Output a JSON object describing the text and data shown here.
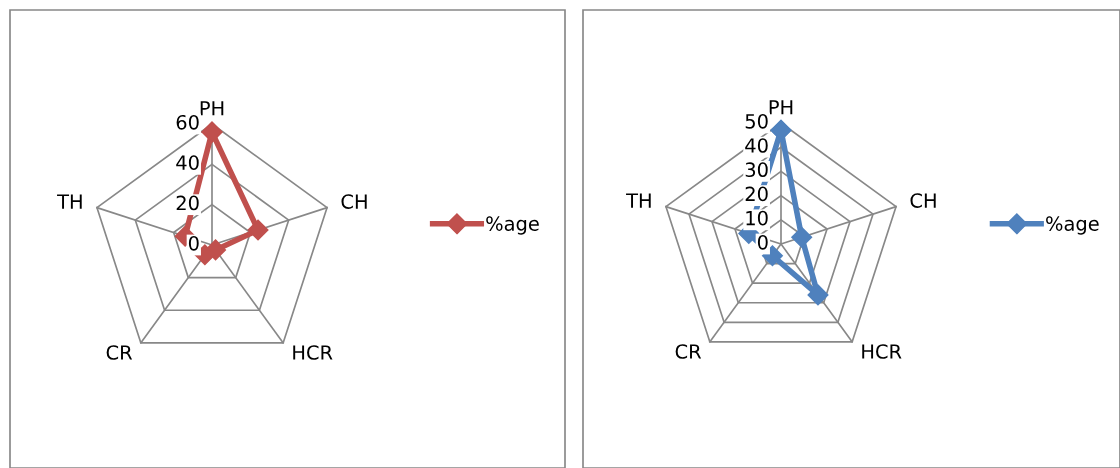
{
  "chart_data": [
    {
      "type": "radar",
      "categories": [
        "PH",
        "CH",
        "HCR",
        "CR",
        "TH"
      ],
      "ylim": [
        0,
        60
      ],
      "yticks": [
        0,
        20,
        40,
        60
      ],
      "legend": "right",
      "marker": "diamond",
      "grid": true,
      "series": [
        {
          "name": "%age",
          "color": "#c0504d",
          "values": [
            56,
            24,
            3,
            6,
            14
          ]
        }
      ]
    },
    {
      "type": "radar",
      "categories": [
        "PH",
        "CH",
        "HCR",
        "CR",
        "TH"
      ],
      "ylim": [
        0,
        50
      ],
      "yticks": [
        0,
        10,
        20,
        30,
        40,
        50
      ],
      "legend": "right",
      "marker": "diamond",
      "grid": true,
      "series": [
        {
          "name": "%age",
          "color": "#4f81bd",
          "values": [
            47,
            9,
            26,
            6,
            14
          ]
        }
      ]
    }
  ]
}
